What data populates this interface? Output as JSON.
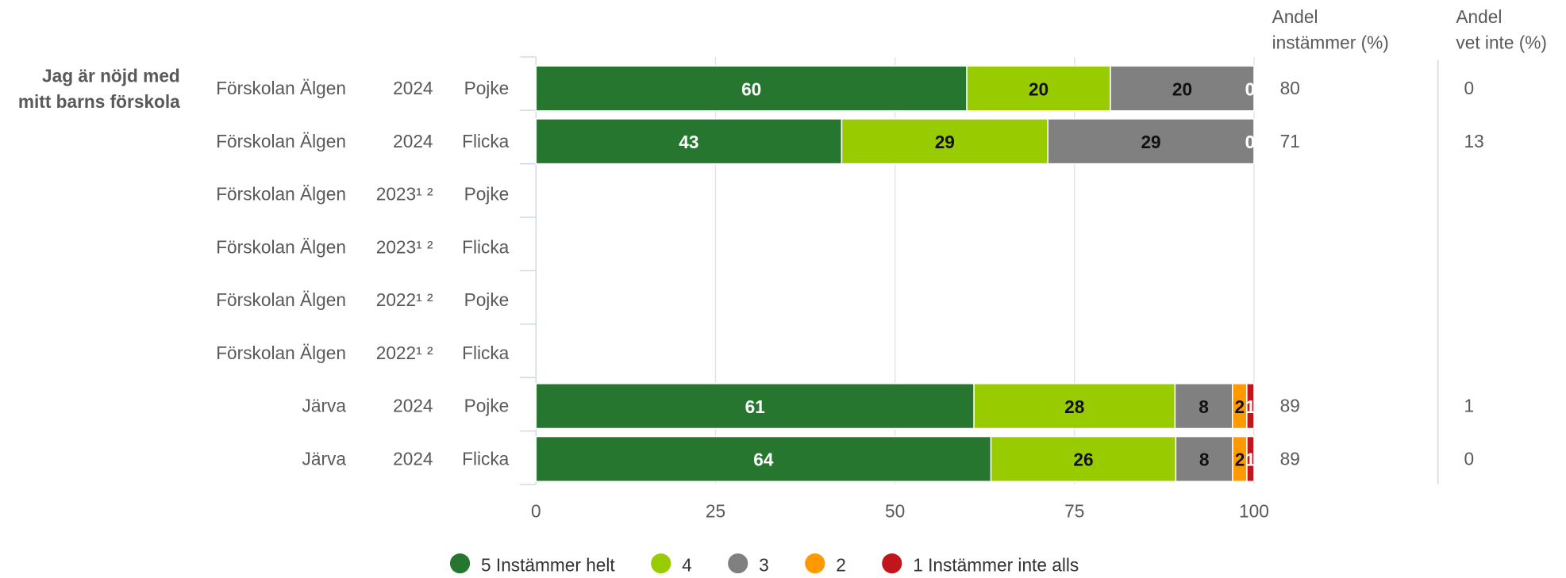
{
  "chart_data": {
    "type": "bar",
    "orientation": "horizontal",
    "stacked": true,
    "question": [
      "Jag är nöjd med",
      "mitt barns förskola"
    ],
    "column_headers": {
      "agree": [
        "Andel",
        "instämmer (%)"
      ],
      "dontknow": [
        "Andel",
        "vet inte (%)"
      ]
    },
    "rows": [
      {
        "unit": "Förskolan Älgen",
        "year": "2024",
        "group": "Pojke",
        "values": [
          60,
          20,
          20,
          0,
          0
        ],
        "agree": "80",
        "dontknow": "0"
      },
      {
        "unit": "Förskolan Älgen",
        "year": "2024",
        "group": "Flicka",
        "values": [
          43,
          29,
          29,
          0,
          0
        ],
        "agree": "71",
        "dontknow": "13"
      },
      {
        "unit": "Förskolan Älgen",
        "year": "2023¹ ²",
        "group": "Pojke",
        "values": null,
        "agree": "",
        "dontknow": ""
      },
      {
        "unit": "Förskolan Älgen",
        "year": "2023¹ ²",
        "group": "Flicka",
        "values": null,
        "agree": "",
        "dontknow": ""
      },
      {
        "unit": "Förskolan Älgen",
        "year": "2022¹ ²",
        "group": "Pojke",
        "values": null,
        "agree": "",
        "dontknow": ""
      },
      {
        "unit": "Förskolan Älgen",
        "year": "2022¹ ²",
        "group": "Flicka",
        "values": null,
        "agree": "",
        "dontknow": ""
      },
      {
        "unit": "Järva",
        "year": "2024",
        "group": "Pojke",
        "values": [
          61,
          28,
          8,
          2,
          1
        ],
        "agree": "89",
        "dontknow": "1"
      },
      {
        "unit": "Järva",
        "year": "2024",
        "group": "Flicka",
        "values": [
          64,
          26,
          8,
          2,
          1
        ],
        "agree": "89",
        "dontknow": "0"
      }
    ],
    "series": [
      {
        "name": "5 Instämmer helt",
        "color": "#267630",
        "label_color": "#ffffff"
      },
      {
        "name": "4",
        "color": "#99cc00",
        "label_color": "#111111"
      },
      {
        "name": "3",
        "color": "#808080",
        "label_color": "#111111"
      },
      {
        "name": "2",
        "color": "#ff9900",
        "label_color": "#111111"
      },
      {
        "name": "1 Instämmer inte alls",
        "color": "#c0161b",
        "label_color": "#ffffff"
      }
    ],
    "xlim": [
      0,
      100
    ],
    "xticks": [
      0,
      25,
      50,
      75,
      100
    ],
    "grid": true,
    "legend_position": "bottom-center"
  }
}
